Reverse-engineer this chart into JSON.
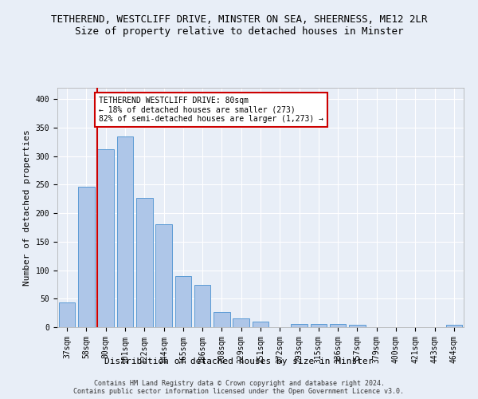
{
  "title_line1": "TETHEREND, WESTCLIFF DRIVE, MINSTER ON SEA, SHEERNESS, ME12 2LR",
  "title_line2": "Size of property relative to detached houses in Minster",
  "xlabel": "Distribution of detached houses by size in Minster",
  "ylabel": "Number of detached properties",
  "footnote": "Contains HM Land Registry data © Crown copyright and database right 2024.\nContains public sector information licensed under the Open Government Licence v3.0.",
  "categories": [
    "37sqm",
    "58sqm",
    "80sqm",
    "101sqm",
    "122sqm",
    "144sqm",
    "165sqm",
    "186sqm",
    "208sqm",
    "229sqm",
    "251sqm",
    "272sqm",
    "293sqm",
    "315sqm",
    "336sqm",
    "357sqm",
    "379sqm",
    "400sqm",
    "421sqm",
    "443sqm",
    "464sqm"
  ],
  "values": [
    44,
    246,
    312,
    335,
    227,
    180,
    90,
    74,
    26,
    15,
    10,
    0,
    5,
    5,
    5,
    4,
    0,
    0,
    0,
    0,
    4
  ],
  "bar_color": "#aec6e8",
  "bar_edge_color": "#5b9bd5",
  "highlight_index": 2,
  "highlight_line_color": "#cc0000",
  "annotation_text": "TETHEREND WESTCLIFF DRIVE: 80sqm\n← 18% of detached houses are smaller (273)\n82% of semi-detached houses are larger (1,273) →",
  "annotation_box_color": "#cc0000",
  "ylim": [
    0,
    420
  ],
  "yticks": [
    0,
    50,
    100,
    150,
    200,
    250,
    300,
    350,
    400
  ],
  "background_color": "#e8eef7",
  "grid_color": "#ffffff",
  "title_fontsize": 9,
  "subtitle_fontsize": 9,
  "axis_label_fontsize": 8,
  "tick_fontsize": 7,
  "annotation_fontsize": 7,
  "footnote_fontsize": 6
}
